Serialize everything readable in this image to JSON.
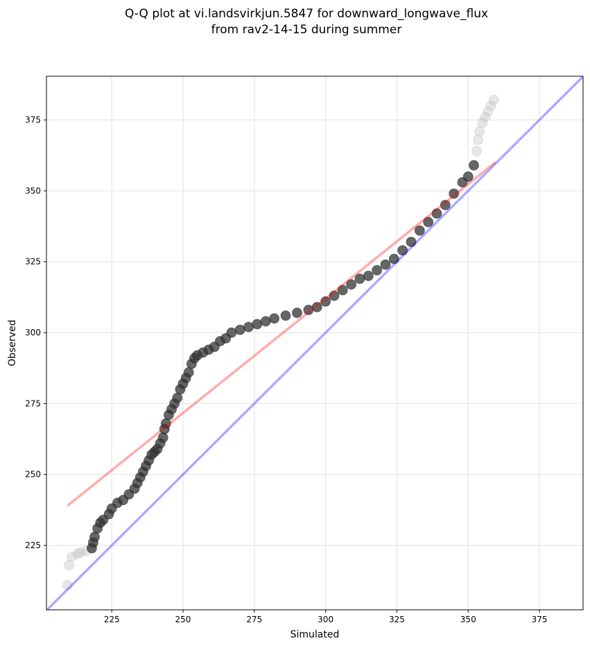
{
  "chart_data": {
    "type": "scatter",
    "title_line1": "Q-Q plot at vi.landsvirkjun.5847 for downward_longwave_flux",
    "title_line2": "from rav2-14-15 during summer",
    "xlabel": "Simulated",
    "ylabel": "Observed",
    "xlim": [
      202.1,
      390.3
    ],
    "ylim": [
      202.3,
      390.4
    ],
    "xticks": [
      225,
      250,
      275,
      300,
      325,
      350,
      375
    ],
    "yticks": [
      225,
      250,
      275,
      300,
      325,
      350,
      375
    ],
    "grid": true,
    "point_color": "#000000",
    "fit_line": {
      "color": "#ff0000",
      "x": [
        209.5,
        359.5
      ],
      "y": [
        239,
        360
      ]
    },
    "identity_line": {
      "color": "#0000ff",
      "x": [
        202.1,
        390.3
      ],
      "y": [
        202.1,
        390.3
      ]
    },
    "points": [
      [
        209.5,
        211
      ],
      [
        210,
        218
      ],
      [
        211,
        221
      ],
      [
        213,
        222
      ],
      [
        214,
        222.5
      ],
      [
        216,
        223
      ],
      [
        218,
        224
      ],
      [
        218.5,
        226
      ],
      [
        219,
        228
      ],
      [
        220,
        231
      ],
      [
        221,
        233
      ],
      [
        222,
        234
      ],
      [
        224,
        236
      ],
      [
        225,
        238
      ],
      [
        227,
        240
      ],
      [
        229,
        241
      ],
      [
        231,
        243
      ],
      [
        233,
        245
      ],
      [
        234,
        247
      ],
      [
        235,
        249
      ],
      [
        236,
        251
      ],
      [
        237,
        253
      ],
      [
        238,
        255
      ],
      [
        239,
        257
      ],
      [
        240,
        258
      ],
      [
        241,
        259
      ],
      [
        242,
        261
      ],
      [
        243,
        263
      ],
      [
        243.5,
        266
      ],
      [
        244,
        268
      ],
      [
        245,
        271
      ],
      [
        246,
        273
      ],
      [
        247,
        275
      ],
      [
        248,
        277
      ],
      [
        249,
        280
      ],
      [
        250,
        282
      ],
      [
        251,
        284
      ],
      [
        252,
        286
      ],
      [
        253,
        289
      ],
      [
        254,
        291
      ],
      [
        255,
        292
      ],
      [
        257,
        293
      ],
      [
        259,
        294
      ],
      [
        261,
        295
      ],
      [
        263,
        297
      ],
      [
        265,
        298
      ],
      [
        267,
        300
      ],
      [
        270,
        301
      ],
      [
        273,
        302
      ],
      [
        276,
        303
      ],
      [
        279,
        304
      ],
      [
        282,
        305
      ],
      [
        286,
        306
      ],
      [
        290,
        307
      ],
      [
        294,
        308
      ],
      [
        297,
        309
      ],
      [
        300,
        311
      ],
      [
        303,
        313
      ],
      [
        306,
        315
      ],
      [
        309,
        317
      ],
      [
        312,
        319
      ],
      [
        315,
        320
      ],
      [
        318,
        322
      ],
      [
        321,
        324
      ],
      [
        324,
        326
      ],
      [
        327,
        329
      ],
      [
        330,
        332
      ],
      [
        333,
        336
      ],
      [
        336,
        339
      ],
      [
        339,
        342
      ],
      [
        342,
        345
      ],
      [
        345,
        349
      ],
      [
        348,
        353
      ],
      [
        350,
        355
      ],
      [
        352,
        359
      ],
      [
        353,
        364
      ],
      [
        353.5,
        368
      ],
      [
        354,
        371
      ],
      [
        355,
        374
      ],
      [
        356,
        376
      ],
      [
        357,
        378
      ],
      [
        358,
        380
      ],
      [
        359,
        382
      ]
    ]
  }
}
